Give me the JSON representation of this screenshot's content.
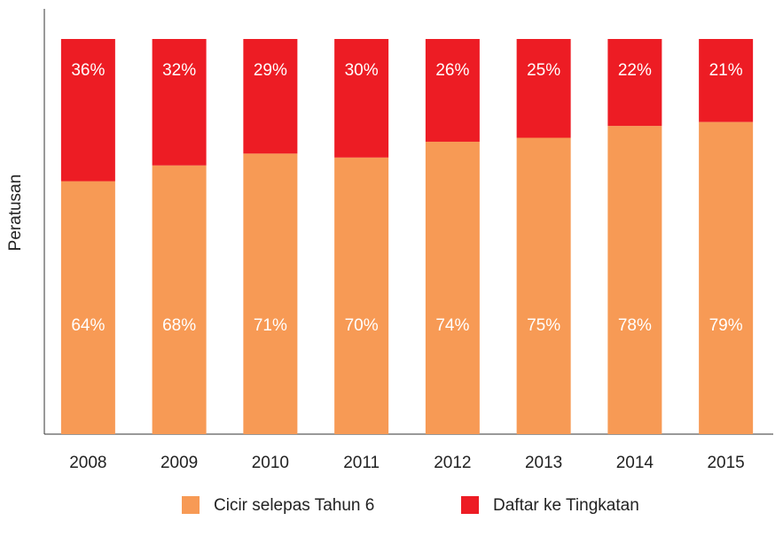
{
  "chart_data": {
    "type": "stacked_bar",
    "y_label": "Peratusan",
    "categories": [
      "2008",
      "2009",
      "2010",
      "2011",
      "2012",
      "2013",
      "2014",
      "2015"
    ],
    "series": [
      {
        "name": "Cicir selepas Tahun 6",
        "color": "#f79a55",
        "values": [
          64,
          68,
          71,
          70,
          74,
          75,
          78,
          79
        ],
        "value_labels": [
          "64%",
          "68%",
          "71%",
          "70%",
          "74%",
          "75%",
          "78%",
          "79%"
        ]
      },
      {
        "name": "Daftar ke Tingkatan",
        "color": "#ed1c24",
        "values": [
          36,
          32,
          29,
          30,
          26,
          25,
          22,
          21
        ],
        "value_labels": [
          "36%",
          "32%",
          "29%",
          "30%",
          "26%",
          "25%",
          "22%",
          "21%"
        ]
      }
    ],
    "ylim": [
      0,
      100
    ]
  }
}
